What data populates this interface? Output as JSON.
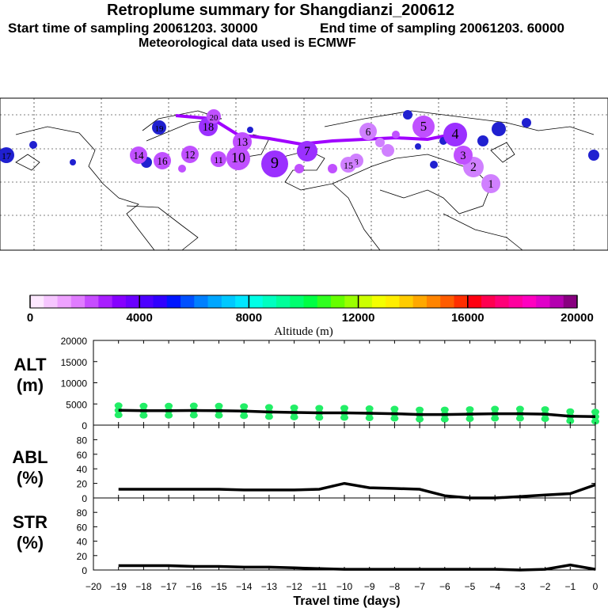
{
  "header": {
    "title": "Retroplume summary for Shangdianzi_200612",
    "start": "Start time of sampling 20061203. 30000",
    "end": "End time of sampling 20061203. 60000",
    "met": "Meteorological data used is ECMWF"
  },
  "map": {
    "plume_labels": [
      "1",
      "2",
      "3",
      "4",
      "5",
      "6",
      "7",
      "8",
      "9",
      "10",
      "11",
      "12",
      "13",
      "14",
      "15",
      "16",
      "17",
      "18",
      "19",
      "20"
    ],
    "colors": {
      "low": "#9b30ff",
      "mid": "#c050ff",
      "high": "#2020d0",
      "pale": "#d080ff",
      "track": "#a000ff"
    }
  },
  "colorbar": {
    "ticks": [
      "0",
      "4000",
      "8000",
      "12000",
      "16000",
      "20000"
    ],
    "label": "Altitude (m)",
    "colors": [
      "#fde8ff",
      "#f6c6ff",
      "#eea2ff",
      "#e07cff",
      "#c64cff",
      "#a81eff",
      "#8600ff",
      "#6a00ff",
      "#4c00ff",
      "#3000ff",
      "#0016ff",
      "#0050ff",
      "#0080ff",
      "#00a6ff",
      "#00c8ff",
      "#00e6ff",
      "#00ffe6",
      "#00ffc0",
      "#00ff9a",
      "#00ff70",
      "#00ff44",
      "#30ff20",
      "#66ff00",
      "#9aff00",
      "#ccff00",
      "#f4ff00",
      "#ffee00",
      "#ffcc00",
      "#ffa800",
      "#ff8400",
      "#ff5c00",
      "#ff2e00",
      "#ff0010",
      "#ff0050",
      "#ff0078",
      "#ff009e",
      "#ff00c0",
      "#e000c8",
      "#b400b0",
      "#880080"
    ]
  },
  "chart_data": [
    {
      "type": "line",
      "name": "ALT",
      "ylabel": "ALT\n(m)",
      "ylim": [
        0,
        20000
      ],
      "yticks": [
        "0",
        "5000",
        "10000",
        "15000",
        "20000"
      ],
      "x": [
        -19,
        -18,
        -17,
        -16,
        -15,
        -14,
        -13,
        -12,
        -11,
        -10,
        -9,
        -8,
        -7,
        -6,
        -5,
        -4,
        -3,
        -2,
        -1,
        0
      ],
      "values": [
        3500,
        3400,
        3400,
        3450,
        3400,
        3300,
        3100,
        3000,
        2900,
        2900,
        2800,
        2700,
        2500,
        2500,
        2600,
        2700,
        2700,
        2600,
        2100,
        2000
      ],
      "scatter_color": "#22ee66"
    },
    {
      "type": "line",
      "name": "ABL",
      "ylabel": "ABL\n(%)",
      "ylim": [
        0,
        100
      ],
      "yticks": [
        "0",
        "20",
        "40",
        "60",
        "80"
      ],
      "x": [
        -19,
        -18,
        -17,
        -16,
        -15,
        -14,
        -13,
        -12,
        -11,
        -10,
        -9,
        -8,
        -7,
        -6,
        -5,
        -4,
        -3,
        -2,
        -1,
        0
      ],
      "values": [
        12,
        12,
        12,
        12,
        12,
        11,
        11,
        11,
        12,
        20,
        14,
        13,
        12,
        3,
        0,
        0,
        2,
        4,
        6,
        18
      ]
    },
    {
      "type": "line",
      "name": "STR",
      "ylabel": "STR\n(%)",
      "ylim": [
        0,
        100
      ],
      "yticks": [
        "0",
        "20",
        "40",
        "60",
        "80"
      ],
      "x": [
        -19,
        -18,
        -17,
        -16,
        -15,
        -14,
        -13,
        -12,
        -11,
        -10,
        -9,
        -8,
        -7,
        -6,
        -5,
        -4,
        -3,
        -2,
        -1,
        0
      ],
      "values": [
        6,
        6,
        6,
        5,
        5,
        4,
        4,
        3,
        2,
        1,
        1,
        1,
        1,
        1,
        1,
        1,
        0,
        1,
        7,
        1
      ]
    }
  ],
  "xaxis": {
    "label": "Travel time (days)",
    "ticks": [
      "−20",
      "−19",
      "−18",
      "−17",
      "−16",
      "−15",
      "−14",
      "−13",
      "−12",
      "−11",
      "−10",
      "−9",
      "−8",
      "−7",
      "−6",
      "−5",
      "−4",
      "−3",
      "−2",
      "−1",
      "0"
    ],
    "xlim": [
      -20,
      0
    ]
  }
}
